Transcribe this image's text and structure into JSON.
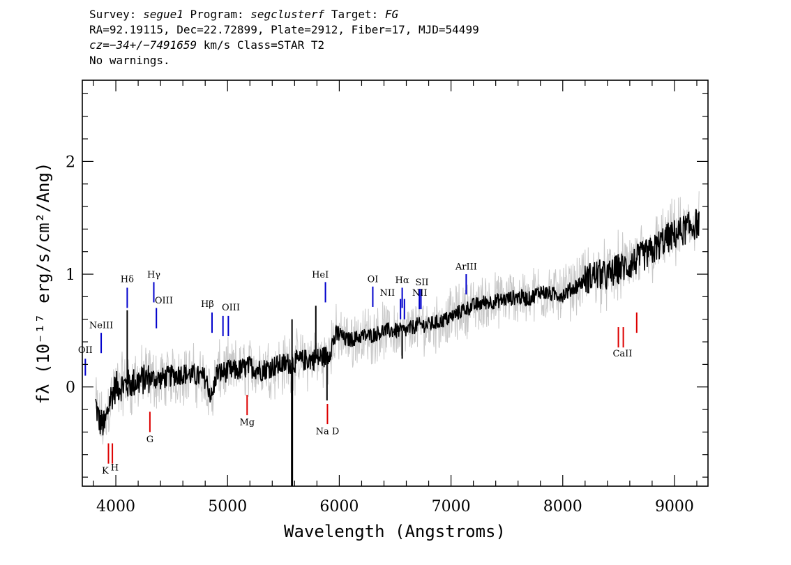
{
  "header": {
    "survey_label": "Survey:",
    "survey": "segue1",
    "program_label": "Program:",
    "program": "segclusterf",
    "target_label": "Target:",
    "target": "FG",
    "line2": "RA=92.19115, Dec=22.72899, Plate=2912, Fiber=17, MJD=54499",
    "cz": "cz=−34+/−7491659",
    "line3_rest": " km/s Class=STAR T2",
    "line4": "No warnings."
  },
  "chart_data": {
    "type": "line",
    "xlabel": "Wavelength (Angstroms)",
    "ylabel": "fλ (10⁻¹⁷ erg/s/cm²/Ang)",
    "xlim": [
      3700,
      9300
    ],
    "ylim": [
      -0.88,
      2.72
    ],
    "x_ticks": [
      "4000",
      "5000",
      "6000",
      "7000",
      "8000",
      "9000"
    ],
    "y_ticks": [
      "0",
      "1",
      "2"
    ],
    "series": [
      {
        "role": "flux",
        "color": "#000000",
        "x": [
          3820,
          3850,
          3900,
          3950,
          4000,
          4100,
          4200,
          4300,
          4400,
          4500,
          4600,
          4700,
          4800,
          4860,
          4900,
          5000,
          5100,
          5200,
          5300,
          5400,
          5500,
          5600,
          5700,
          5800,
          5900,
          5950,
          6000,
          6050,
          6100,
          6200,
          6300,
          6400,
          6500,
          6600,
          6700,
          6800,
          6900,
          7000,
          7100,
          7200,
          7300,
          7400,
          7500,
          7600,
          7700,
          7800,
          7900,
          8000,
          8100,
          8200,
          8300,
          8400,
          8500,
          8600,
          8700,
          8800,
          8900,
          9000,
          9100,
          9200,
          9220
        ],
        "y": [
          -0.15,
          -0.3,
          -0.35,
          -0.1,
          0.0,
          0.02,
          0.05,
          0.08,
          0.07,
          0.1,
          0.12,
          0.1,
          0.08,
          -0.1,
          0.12,
          0.14,
          0.15,
          0.18,
          0.15,
          0.18,
          0.2,
          0.22,
          0.24,
          0.25,
          0.28,
          0.42,
          0.48,
          0.42,
          0.42,
          0.45,
          0.46,
          0.5,
          0.5,
          0.5,
          0.55,
          0.55,
          0.58,
          0.62,
          0.68,
          0.72,
          0.75,
          0.76,
          0.78,
          0.8,
          0.78,
          0.85,
          0.82,
          0.82,
          0.88,
          0.95,
          1.0,
          0.98,
          1.05,
          1.08,
          1.15,
          1.2,
          1.3,
          1.35,
          1.4,
          1.45,
          1.45
        ]
      },
      {
        "role": "error band",
        "color": "#c8c8c8",
        "width": 0.22
      }
    ],
    "features": [
      {
        "x": 4102,
        "y": 0.68
      },
      {
        "x": 5577,
        "y": -0.88
      },
      {
        "x": 5577,
        "y": 0.6
      },
      {
        "x": 5790,
        "y": 0.72
      },
      {
        "x": 5890,
        "y": -0.12
      },
      {
        "x": 6563,
        "y": 0.25
      }
    ],
    "emission_lines": [
      {
        "name": "OII",
        "x": 3727,
        "y0": 0.1,
        "y1": 0.25,
        "lx": 3727,
        "ly": 0.3
      },
      {
        "name": "NeIII",
        "x": 3869,
        "y0": 0.3,
        "y1": 0.48,
        "lx": 3869,
        "ly": 0.52
      },
      {
        "name": "Hδ",
        "x": 4102,
        "y0": 0.7,
        "y1": 0.88,
        "lx": 4102,
        "ly": 0.93
      },
      {
        "name": "Hγ",
        "x": 4340,
        "y0": 0.75,
        "y1": 0.93,
        "lx": 4340,
        "ly": 0.97
      },
      {
        "name": "OIII",
        "x": 4363,
        "y0": 0.52,
        "y1": 0.7,
        "lx": 4430,
        "ly": 0.74
      },
      {
        "name": "Hβ",
        "x": 4861,
        "y0": 0.48,
        "y1": 0.66,
        "lx": 4820,
        "ly": 0.71
      },
      {
        "name": "OIII",
        "x": 4959,
        "y0": 0.45,
        "y1": 0.63,
        "lx": 5030,
        "ly": 0.68
      },
      {
        "name": "OIII",
        "x": 5007,
        "y0": 0.45,
        "y1": 0.63,
        "lx": "",
        "ly": ""
      },
      {
        "name": "HeI",
        "x": 5876,
        "y0": 0.75,
        "y1": 0.93,
        "lx": 5830,
        "ly": 0.97
      },
      {
        "name": "OI",
        "x": 6300,
        "y0": 0.71,
        "y1": 0.89,
        "lx": 6300,
        "ly": 0.93
      },
      {
        "name": "NII",
        "x": 6548,
        "y0": 0.6,
        "y1": 0.78,
        "lx": 6430,
        "ly": 0.81
      },
      {
        "name": "Hα",
        "x": 6563,
        "y0": 0.7,
        "y1": 0.88,
        "lx": 6563,
        "ly": 0.92
      },
      {
        "name": "NII",
        "x": 6583,
        "y0": 0.6,
        "y1": 0.78,
        "lx": "",
        "ly": ""
      },
      {
        "name": "SII",
        "x": 6717,
        "y0": 0.69,
        "y1": 0.87,
        "lx": 6740,
        "ly": 0.9
      },
      {
        "name": "NII",
        "x": 6731,
        "y0": 0.69,
        "y1": 0.87,
        "lx": 6720,
        "ly": 0.81
      },
      {
        "name": "ArIII",
        "x": 7136,
        "y0": 0.82,
        "y1": 1.0,
        "lx": 7136,
        "ly": 1.04
      }
    ],
    "absorption_lines": [
      {
        "name": "K",
        "x": 3934,
        "y0": -0.68,
        "y1": -0.5,
        "lx": 3905,
        "ly": -0.77
      },
      {
        "name": "H",
        "x": 3969,
        "y0": -0.68,
        "y1": -0.5,
        "lx": 3990,
        "ly": -0.74
      },
      {
        "name": "G",
        "x": 4305,
        "y0": -0.4,
        "y1": -0.22,
        "lx": 4305,
        "ly": -0.49
      },
      {
        "name": "Mg",
        "x": 5175,
        "y0": -0.25,
        "y1": -0.07,
        "lx": 5175,
        "ly": -0.34
      },
      {
        "name": "Na D",
        "x": 5894,
        "y0": -0.33,
        "y1": -0.15,
        "lx": 5894,
        "ly": -0.42
      },
      {
        "name": "CaII",
        "x": 8498,
        "y0": 0.35,
        "y1": 0.53,
        "lx": 8535,
        "ly": 0.27
      },
      {
        "name": "CaII",
        "x": 8542,
        "y0": 0.35,
        "y1": 0.53,
        "lx": "",
        "ly": ""
      },
      {
        "name": "CaII",
        "x": 8662,
        "y0": 0.48,
        "y1": 0.66,
        "lx": "",
        "ly": ""
      }
    ],
    "line_colors": {
      "emission": "#0000cc",
      "absorption": "#dd0000"
    }
  }
}
